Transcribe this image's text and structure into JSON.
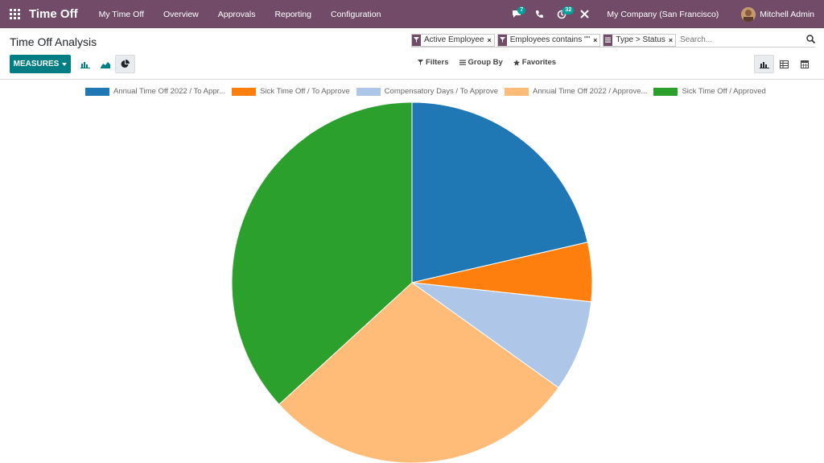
{
  "navbar": {
    "app_name": "Time Off",
    "menu": [
      "My Time Off",
      "Overview",
      "Approvals",
      "Reporting",
      "Configuration"
    ],
    "messages_badge": "7",
    "activities_badge": "32",
    "company": "My Company (San Francisco)",
    "user": "Mitchell Admin"
  },
  "control_panel": {
    "title": "Time Off Analysis",
    "measures_label": "MEASURES",
    "facets": [
      {
        "type": "filter",
        "label": "Active Employee"
      },
      {
        "type": "filter",
        "label": "Employees contains \"\""
      },
      {
        "type": "groupby",
        "label": "Type > Status"
      }
    ],
    "search_placeholder": "Search...",
    "filters_label": "Filters",
    "groupby_label": "Group By",
    "favorites_label": "Favorites"
  },
  "chart_data": {
    "type": "pie",
    "series": [
      {
        "name": "Annual Time Off 2022 / To Appr...",
        "value": 21.4,
        "color": "#1f77b4"
      },
      {
        "name": "Sick Time Off / To Approve",
        "value": 5.3,
        "color": "#ff7f0e"
      },
      {
        "name": "Compensatory Days / To Approve",
        "value": 8.2,
        "color": "#aec7e8"
      },
      {
        "name": "Annual Time Off 2022 / Approve...",
        "value": 28.3,
        "color": "#ffbb78"
      },
      {
        "name": "Sick Time Off / Approved",
        "value": 36.8,
        "color": "#2ca02c"
      }
    ]
  }
}
